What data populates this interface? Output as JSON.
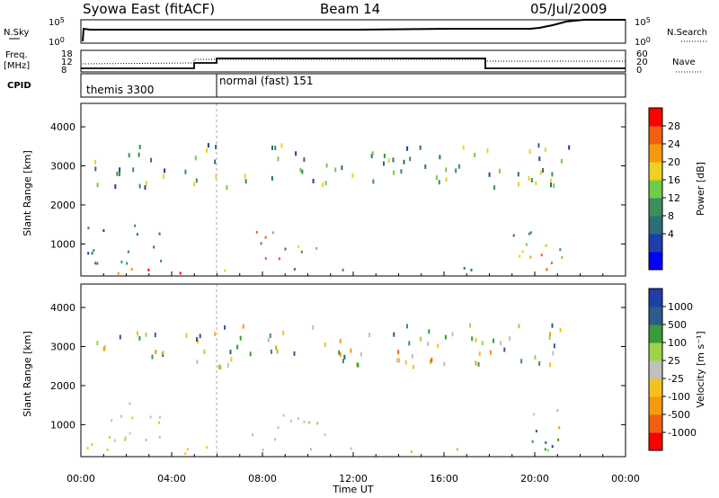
{
  "header": {
    "station": "Syowa East (fitACF)",
    "beam": "Beam 14",
    "date": "05/Jul/2009"
  },
  "noise_panel": {
    "left_label": "N.Sky",
    "right_label": "N.Search",
    "left_ticks": [
      "10^5",
      "10^0"
    ],
    "right_ticks": [
      "10^5",
      "10^0"
    ]
  },
  "freq_panel": {
    "left_label_1": "Freq.",
    "left_label_2": "[MHz]",
    "left_ticks": [
      "18",
      "12",
      "8"
    ],
    "right_label": "Nave",
    "right_ticks": [
      "60",
      "20",
      "0"
    ],
    "freq_steps": [
      {
        "start_h": 0,
        "end_h": 5,
        "mhz": 9
      },
      {
        "start_h": 5,
        "end_h": 18,
        "mhz": 12
      },
      {
        "start_h": 18,
        "end_h": 24,
        "mhz": 9
      }
    ]
  },
  "cpid_panel": {
    "label": "CPID",
    "modes": [
      {
        "name": "themis 3300",
        "start_h": 0,
        "end_h": 6
      },
      {
        "name": "normal (fast) 151",
        "start_h": 6,
        "end_h": 24
      }
    ]
  },
  "chart_data": [
    {
      "type": "heatmap",
      "ylabel": "Slant Range [km]",
      "ylim": [
        180,
        4600
      ],
      "yticks": [
        "4000",
        "3000",
        "2000",
        "1000"
      ],
      "colorbar_label": "Power [dB]",
      "colorbar_ticks": [
        "28",
        "24",
        "20",
        "16",
        "12",
        "8",
        "4"
      ],
      "colors": [
        "#0000ff",
        "#1f3fa8",
        "#2f6c7a",
        "#3a8f5a",
        "#73c94a",
        "#f0d020",
        "#f59a10",
        "#f06010",
        "#ff0000"
      ],
      "value_range": [
        0,
        30
      ],
      "clusters": [
        {
          "h": [
            0.2,
            6.0
          ],
          "r": [
            250,
            420
          ],
          "v": [
            18,
            30
          ]
        },
        {
          "h": [
            6.0,
            11.0
          ],
          "r": [
            300,
            420
          ],
          "v": [
            8,
            20
          ]
        },
        {
          "h": [
            11.0,
            18.0
          ],
          "r": [
            320,
            420
          ],
          "v": [
            4,
            14
          ]
        },
        {
          "h": [
            7.5,
            10.8
          ],
          "r": [
            550,
            1350
          ],
          "v": [
            6,
            26
          ]
        },
        {
          "h": [
            0.2,
            3.5
          ],
          "r": [
            500,
            1700
          ],
          "v": [
            4,
            14
          ]
        },
        {
          "h": [
            18.8,
            21.2
          ],
          "r": [
            350,
            1400
          ],
          "v": [
            6,
            26
          ]
        },
        {
          "h": [
            19.0,
            21.0
          ],
          "r": [
            250,
            750
          ],
          "v": [
            18,
            28
          ]
        },
        {
          "h": [
            0.5,
            21.5
          ],
          "r": [
            2500,
            3600
          ],
          "v": [
            4,
            20
          ]
        }
      ]
    },
    {
      "type": "heatmap",
      "ylabel": "Slant Range [km]",
      "ylim": [
        180,
        4600
      ],
      "yticks": [
        "4000",
        "3000",
        "2000",
        "1000"
      ],
      "colorbar_label": "Velocity [m s⁻¹]",
      "colorbar_ticks": [
        "1000",
        "500",
        "100",
        "25",
        "-25",
        "-100",
        "-500",
        "-1000"
      ],
      "colors": [
        "#ff0000",
        "#f06010",
        "#f59a10",
        "#f5c020",
        "#c0c0c0",
        "#9bd44a",
        "#3a9a3a",
        "#2f5a8a",
        "#1f3fa8"
      ],
      "value_range": [
        -1000,
        1000
      ],
      "clusters": [
        {
          "h": [
            0.2,
            6.0
          ],
          "r": [
            250,
            480
          ],
          "v": [
            -300,
            -100
          ]
        },
        {
          "h": [
            6.0,
            11.0
          ],
          "r": [
            300,
            420
          ],
          "v": [
            -50,
            40
          ]
        },
        {
          "h": [
            11.0,
            18.0
          ],
          "r": [
            320,
            420
          ],
          "v": [
            50,
            150
          ]
        },
        {
          "h": [
            7.5,
            10.8
          ],
          "r": [
            550,
            1350
          ],
          "v": [
            -40,
            150
          ]
        },
        {
          "h": [
            0.2,
            3.5
          ],
          "r": [
            500,
            1700
          ],
          "v": [
            -400,
            100
          ]
        },
        {
          "h": [
            18.8,
            21.2
          ],
          "r": [
            350,
            1400
          ],
          "v": [
            -500,
            800
          ]
        },
        {
          "h": [
            0.5,
            21.5
          ],
          "r": [
            2500,
            3600
          ],
          "v": [
            -600,
            800
          ]
        }
      ]
    }
  ],
  "x_axis": {
    "label": "Time UT",
    "ticks": [
      "00:00",
      "04:00",
      "08:00",
      "12:00",
      "16:00",
      "20:00",
      "00:00"
    ]
  },
  "colorbar_arrow": "→"
}
